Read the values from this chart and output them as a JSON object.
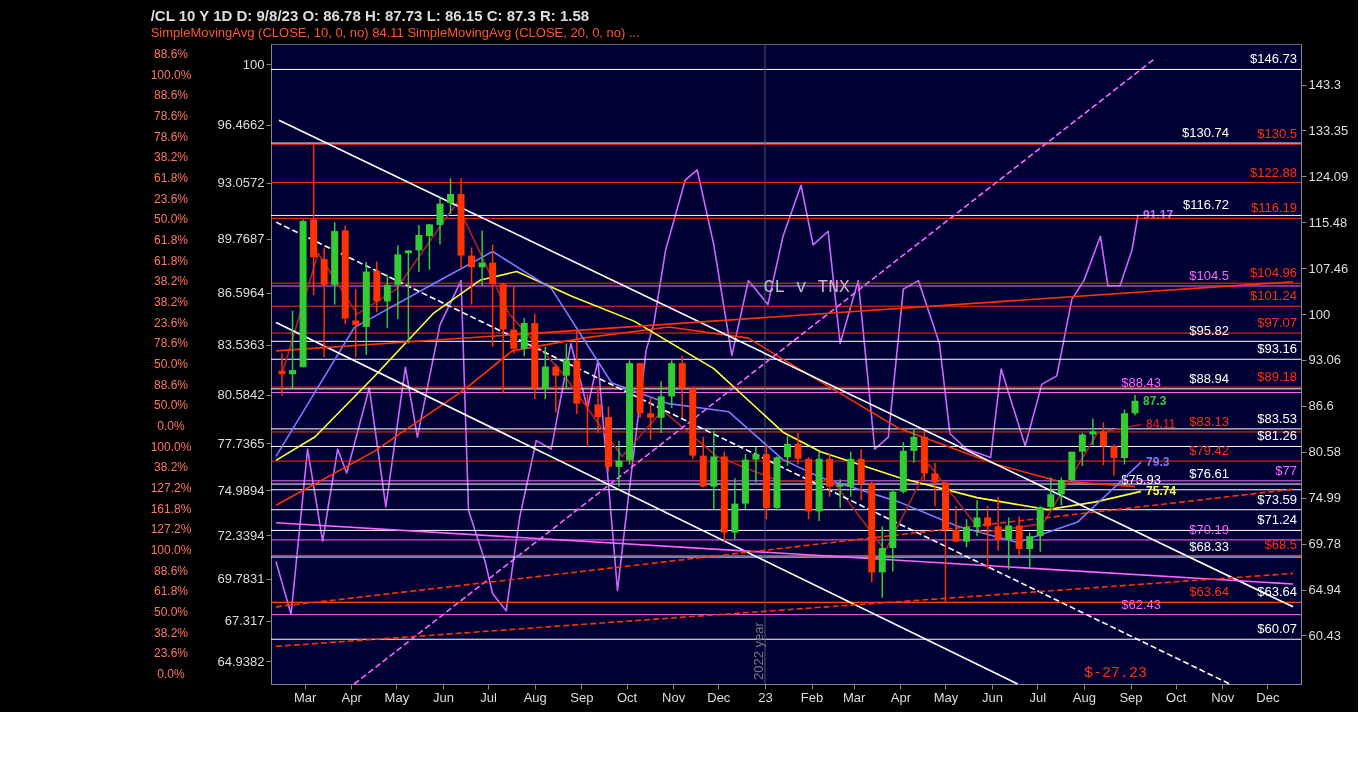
{
  "chart_data": {
    "type": "candlestick",
    "title": "/CL 10 Y 1D D: 9/8/23 O: 86.78 H: 87.73 L: 86.15 C: 87.3 R: 1.58",
    "subtitle": "SimpleMovingAvg (CLOSE, 10, 0, no) 84.11 SimpleMovingAvg (CLOSE, 20, 0, no) ...",
    "xlim": [
      "2022-02-10",
      "2023-12-20"
    ],
    "xticks": [
      {
        "value": "2022-03-01",
        "label": "Mar"
      },
      {
        "value": "2022-04-01",
        "label": "Apr"
      },
      {
        "value": "2022-05-01",
        "label": "May"
      },
      {
        "value": "2022-06-01",
        "label": "Jun"
      },
      {
        "value": "2022-07-01",
        "label": "Jul"
      },
      {
        "value": "2022-08-01",
        "label": "Aug"
      },
      {
        "value": "2022-09-01",
        "label": "Sep"
      },
      {
        "value": "2022-10-01",
        "label": "Oct"
      },
      {
        "value": "2022-11-01",
        "label": "Nov"
      },
      {
        "value": "2022-12-01",
        "label": "Dec"
      },
      {
        "value": "2023-01-01",
        "label": "23"
      },
      {
        "value": "2023-02-01",
        "label": "Feb"
      },
      {
        "value": "2023-03-01",
        "label": "Mar"
      },
      {
        "value": "2023-04-01",
        "label": "Apr"
      },
      {
        "value": "2023-05-01",
        "label": "May"
      },
      {
        "value": "2023-06-01",
        "label": "Jun"
      },
      {
        "value": "2023-07-01",
        "label": "Jul"
      },
      {
        "value": "2023-08-01",
        "label": "Aug"
      },
      {
        "value": "2023-09-01",
        "label": "Sep"
      },
      {
        "value": "2023-10-01",
        "label": "Oct"
      },
      {
        "value": "2023-11-01",
        "label": "Nov"
      },
      {
        "value": "2023-12-01",
        "label": "Dec"
      }
    ],
    "ylim": [
      63.6,
      101.2
    ],
    "yticks": [
      100,
      96.4662,
      93.0572,
      89.7687,
      86.5964,
      83.5363,
      80.5842,
      77.7365,
      74.9894,
      72.3394,
      69.7831,
      67.317,
      64.9382
    ],
    "y2lim": [
      56.0,
      152.7
    ],
    "y2ticks": [
      60.43,
      64.94,
      69.78,
      74.99,
      80.58,
      86.6,
      93.06,
      100,
      107.46,
      115.48,
      124.09,
      133.35,
      143.3
    ],
    "log": "y2",
    "series": [
      {
        "type": "line",
        "axis": "y",
        "color": "#cc66ff",
        "x": [
          "2022-02-10",
          "2022-02-20",
          "2022-03-03",
          "2022-03-13",
          "2022-03-23",
          "2022-03-29",
          "2022-04-13",
          "2022-04-24",
          "2022-05-07",
          "2022-05-15",
          "2022-05-30",
          "2022-06-13",
          "2022-06-18",
          "2022-06-29",
          "2022-07-04",
          "2022-07-13",
          "2022-07-22",
          "2022-08-02",
          "2022-08-12",
          "2022-08-25",
          "2022-09-05",
          "2022-09-12",
          "2022-09-25",
          "2022-09-30",
          "2022-10-14",
          "2022-10-19",
          "2022-10-27",
          "2022-11-09",
          "2022-11-17",
          "2022-11-28",
          "2022-12-10",
          "2022-12-21",
          "2023-01-03",
          "2023-01-13",
          "2023-01-25",
          "2023-02-02",
          "2023-02-12",
          "2023-02-20",
          "2023-03-04",
          "2023-03-15",
          "2023-03-24",
          "2023-04-03",
          "2023-04-13",
          "2023-04-27",
          "2023-05-04",
          "2023-05-15",
          "2023-05-31",
          "2023-06-07",
          "2023-06-23",
          "2023-07-04",
          "2023-07-14",
          "2023-07-24",
          "2023-08-01",
          "2023-08-12",
          "2023-08-17",
          "2023-08-25",
          "2023-09-02",
          "2023-09-06"
        ],
        "values": [
          70.8,
          67.7,
          77.4,
          72.0,
          77.4,
          76.0,
          81.0,
          74.0,
          82.2,
          78.1,
          84.7,
          87.3,
          73.8,
          70.8,
          68.9,
          67.9,
          73.4,
          77.9,
          77.4,
          83.6,
          79.8,
          82.6,
          69.1,
          72.9,
          83.2,
          84.7,
          89.1,
          93.2,
          93.8,
          89.4,
          82.9,
          87.3,
          85.9,
          89.9,
          92.9,
          89.4,
          90.2,
          83.6,
          87.3,
          77.4,
          78.1,
          86.8,
          87.3,
          83.6,
          78.3,
          77.4,
          76.9,
          82.1,
          77.6,
          81.2,
          81.7,
          86.2,
          87.3,
          89.9,
          87.0,
          87.0,
          89.1,
          91.17
        ],
        "value_labels": [
          null,
          null,
          null,
          null,
          null,
          null,
          null,
          null,
          null,
          null,
          null,
          null,
          null,
          null,
          null,
          null,
          null,
          null,
          null,
          null,
          null,
          null,
          null,
          null,
          null,
          null,
          null,
          null,
          null,
          null,
          null,
          null,
          null,
          null,
          null,
          null,
          null,
          null,
          null,
          null,
          null,
          null,
          null,
          null,
          null,
          null,
          null,
          null,
          null,
          null,
          null,
          null,
          null,
          null,
          null,
          null,
          null,
          "91.17"
        ]
      },
      {
        "type": "line",
        "axis": "y2",
        "color": "#ff3300",
        "x": [
          "2022-02-10",
          "2022-04-16",
          "2022-06-15",
          "2022-07-17",
          "2022-09-02",
          "2022-10-29",
          "2022-12-21",
          "2023-01-12",
          "2023-03-31",
          "2023-06-04",
          "2023-07-14",
          "2023-09-04"
        ],
        "values": [
          74.1,
          80.6,
          88.8,
          94.4,
          96.3,
          98.0,
          96.3,
          93.3,
          83.6,
          79.0,
          77.0,
          76.3
        ]
      },
      {
        "type": "line",
        "axis": "y2",
        "color": "#ffff33",
        "x": [
          "2022-02-10",
          "2022-03-08",
          "2022-04-16",
          "2022-05-26",
          "2022-06-26",
          "2022-07-20",
          "2022-08-26",
          "2022-10-06",
          "2022-11-28",
          "2023-01-13",
          "2023-02-07",
          "2023-03-31",
          "2023-05-22",
          "2023-07-08",
          "2023-08-09",
          "2023-09-08"
        ],
        "values": [
          79.5,
          82.5,
          90.6,
          100.2,
          105.5,
          106.9,
          102.8,
          98.9,
          91.8,
          83.1,
          80.6,
          77.4,
          75.0,
          73.6,
          74.5,
          75.74
        ],
        "value_labels": [
          null,
          null,
          null,
          null,
          null,
          null,
          null,
          null,
          null,
          null,
          null,
          null,
          null,
          null,
          null,
          "75.74"
        ]
      },
      {
        "type": "line",
        "axis": "y2",
        "color": "#7b7bff",
        "x": [
          "2022-02-10",
          "2022-04-03",
          "2022-05-26",
          "2022-07-04",
          "2022-08-12",
          "2022-09-21",
          "2022-10-29",
          "2022-12-08",
          "2023-01-13",
          "2023-02-07",
          "2023-03-31",
          "2023-05-09",
          "2023-06-18",
          "2023-07-28",
          "2023-09-08"
        ],
        "values": [
          80.0,
          97.9,
          104.9,
          110.3,
          104.1,
          89.8,
          86.9,
          85.8,
          79.6,
          77.4,
          74.5,
          71.7,
          69.9,
          72.2,
          79.3
        ],
        "value_labels": [
          null,
          null,
          null,
          null,
          null,
          null,
          null,
          null,
          null,
          null,
          null,
          null,
          null,
          null,
          "79.3"
        ]
      },
      {
        "type": "line",
        "axis": "y2",
        "color": "#b22222",
        "x": [
          "2022-02-14",
          "2022-03-10",
          "2022-04-05",
          "2022-05-01",
          "2022-06-10",
          "2022-07-15",
          "2022-08-20",
          "2022-09-28",
          "2022-10-25",
          "2022-11-30",
          "2023-01-10",
          "2023-02-15",
          "2023-03-22",
          "2023-04-20",
          "2023-05-25",
          "2023-07-05",
          "2023-08-10",
          "2023-09-08"
        ],
        "values": [
          91,
          110,
          100,
          104,
          119,
          100,
          91,
          80,
          86,
          80,
          77,
          77,
          69,
          79,
          71,
          72,
          83,
          84.11
        ],
        "value_labels": [
          null,
          null,
          null,
          null,
          null,
          null,
          null,
          null,
          null,
          null,
          null,
          null,
          null,
          null,
          null,
          null,
          null,
          "84.11"
        ]
      },
      {
        "type": "line",
        "axis": "y2",
        "color": "#ffffff",
        "x": [
          "2022-02-12",
          "2023-12-18"
        ],
        "values": [
          135.5,
          63.2
        ]
      },
      {
        "type": "line",
        "axis": "y2",
        "color": "#ffffff",
        "x": [
          "2022-02-10",
          "2023-06-18"
        ],
        "values": [
          98.7,
          56.0
        ]
      },
      {
        "type": "line",
        "axis": "y2",
        "color": "#ffffff",
        "line_style": "dashed",
        "x": [
          "2022-02-10",
          "2023-11-06"
        ],
        "values": [
          115.5,
          56.0
        ]
      },
      {
        "type": "line",
        "axis": "y2",
        "color": "#ff66ff",
        "line_style": "dashed",
        "x": [
          "2022-04-03",
          "2023-09-17"
        ],
        "values": [
          56.0,
          149.2
        ]
      },
      {
        "type": "line",
        "axis": "y2",
        "color": "#ff3300",
        "x": [
          "2022-02-10",
          "2023-12-18"
        ],
        "values": [
          94.4,
          105.2
        ]
      },
      {
        "type": "line",
        "axis": "y2",
        "color": "#ff66ff",
        "x": [
          "2022-02-10",
          "2023-12-18"
        ],
        "values": [
          72.1,
          65.5
        ]
      },
      {
        "type": "line",
        "axis": "y2",
        "color": "#ff3300",
        "line_style": "dashed",
        "x": [
          "2022-02-10",
          "2023-12-18"
        ],
        "values": [
          63.2,
          76.0
        ]
      },
      {
        "type": "line",
        "axis": "y2",
        "color": "#ff3300",
        "line_style": "dashed",
        "x": [
          "2022-02-10",
          "2023-12-18"
        ],
        "values": [
          59.4,
          66.6
        ]
      },
      {
        "type": "candlestick",
        "axis": "y2",
        "x": [
          "2022-02-14",
          "2022-02-21",
          "2022-02-28",
          "2022-03-07",
          "2022-03-14",
          "2022-03-21",
          "2022-03-28",
          "2022-04-04",
          "2022-04-11",
          "2022-04-18",
          "2022-04-25",
          "2022-05-02",
          "2022-05-09",
          "2022-05-16",
          "2022-05-23",
          "2022-05-30",
          "2022-06-06",
          "2022-06-13",
          "2022-06-20",
          "2022-06-27",
          "2022-07-04",
          "2022-07-11",
          "2022-07-18",
          "2022-07-25",
          "2022-08-01",
          "2022-08-08",
          "2022-08-15",
          "2022-08-22",
          "2022-08-29",
          "2022-09-05",
          "2022-09-12",
          "2022-09-19",
          "2022-09-26",
          "2022-10-03",
          "2022-10-10",
          "2022-10-17",
          "2022-10-24",
          "2022-10-31",
          "2022-11-07",
          "2022-11-14",
          "2022-11-21",
          "2022-11-28",
          "2022-12-05",
          "2022-12-12",
          "2022-12-19",
          "2022-12-26",
          "2023-01-02",
          "2023-01-09",
          "2023-01-16",
          "2023-01-23",
          "2023-01-30",
          "2023-02-06",
          "2023-02-13",
          "2023-02-20",
          "2023-02-27",
          "2023-03-06",
          "2023-03-13",
          "2023-03-20",
          "2023-03-27",
          "2023-04-03",
          "2023-04-10",
          "2023-04-17",
          "2023-04-24",
          "2023-05-01",
          "2023-05-08",
          "2023-05-15",
          "2023-05-22",
          "2023-05-29",
          "2023-06-05",
          "2023-06-12",
          "2023-06-19",
          "2023-06-26",
          "2023-07-03",
          "2023-07-10",
          "2023-07-17",
          "2023-07-24",
          "2023-07-31",
          "2023-08-07",
          "2023-08-14",
          "2023-08-21",
          "2023-08-28",
          "2023-09-04"
        ],
        "ohlc": [
          [
            91.5,
            94,
            88,
            91
          ],
          [
            91,
            100.5,
            89,
            91.6
          ],
          [
            92,
            116,
            92,
            115.7
          ],
          [
            116,
            130.5,
            103,
            109.3
          ],
          [
            109,
            111,
            93.5,
            104.7
          ],
          [
            104.7,
            115.5,
            101.5,
            113.9
          ],
          [
            114,
            114.9,
            98.4,
            99.3
          ],
          [
            99,
            104,
            93.5,
            98.3
          ],
          [
            98,
            108.5,
            93.8,
            106.9
          ],
          [
            107,
            108.6,
            100.3,
            102
          ],
          [
            102,
            106.4,
            97.8,
            104.7
          ],
          [
            104.7,
            111.4,
            99.2,
            109.8
          ],
          [
            110,
            110.5,
            95.5,
            110.5
          ],
          [
            110.5,
            115,
            106.8,
            113.2
          ],
          [
            113,
            115.2,
            107.2,
            115.1
          ],
          [
            115,
            120,
            111.5,
            118.9
          ],
          [
            119,
            123.7,
            117,
            120.7
          ],
          [
            120.7,
            123.7,
            107.4,
            109.6
          ],
          [
            109.6,
            111,
            101.5,
            107.6
          ],
          [
            107.6,
            114,
            104.5,
            108.4
          ],
          [
            108.4,
            111.5,
            95,
            104.8
          ],
          [
            104.8,
            105,
            88.3,
            97.6
          ],
          [
            97.6,
            104.5,
            94,
            94.7
          ],
          [
            94.7,
            99.4,
            93.6,
            98.6
          ],
          [
            98.6,
            100,
            87.5,
            89
          ],
          [
            89,
            95,
            87.5,
            92.1
          ],
          [
            92.1,
            92.5,
            85.7,
            90.8
          ],
          [
            90.8,
            95.5,
            88.9,
            93
          ],
          [
            93,
            97.6,
            85.5,
            86.9
          ],
          [
            86.9,
            88.2,
            81.2,
            86.8
          ],
          [
            86.8,
            89.3,
            83,
            85.1
          ],
          [
            85.1,
            86.5,
            78.1,
            78.7
          ],
          [
            78.7,
            82,
            76.3,
            79.5
          ],
          [
            79.5,
            93,
            79,
            92.6
          ],
          [
            92.6,
            92.6,
            85,
            85.6
          ],
          [
            85.6,
            87.8,
            82.1,
            85
          ],
          [
            85,
            90,
            83,
            87.9
          ],
          [
            87.9,
            93,
            86.3,
            92.6
          ],
          [
            92.6,
            93.7,
            85,
            89
          ],
          [
            89,
            89.2,
            79.7,
            80.1
          ],
          [
            80.1,
            82.5,
            76.2,
            76.3
          ],
          [
            76.3,
            83.3,
            73.6,
            80
          ],
          [
            80,
            80.6,
            70,
            71
          ],
          [
            71,
            77.3,
            70.3,
            74.3
          ],
          [
            74.3,
            80.3,
            73.7,
            79.6
          ],
          [
            79.6,
            81.2,
            76.8,
            80.3
          ],
          [
            80.3,
            81.5,
            72.5,
            73.8
          ],
          [
            73.8,
            80,
            73.5,
            79.9
          ],
          [
            79.9,
            82.6,
            78.8,
            81.6
          ],
          [
            81.6,
            83,
            79,
            79.7
          ],
          [
            79.7,
            79.9,
            72.5,
            73.4
          ],
          [
            73.4,
            80.6,
            72.3,
            79.7
          ],
          [
            79.7,
            80.4,
            75.1,
            76.3
          ],
          [
            76.3,
            77.2,
            73.8,
            76.5
          ],
          [
            76.3,
            80.6,
            75.1,
            79.7
          ],
          [
            79.7,
            80.9,
            74.7,
            76.7
          ],
          [
            76.7,
            76.9,
            65.7,
            66.7
          ],
          [
            66.7,
            71.7,
            64.1,
            69.3
          ],
          [
            69.3,
            76,
            66.8,
            75.7
          ],
          [
            75.7,
            81.8,
            75.5,
            80.7
          ],
          [
            80.7,
            83.5,
            79.2,
            82.5
          ],
          [
            82.5,
            83.3,
            77,
            77.9
          ],
          [
            77.9,
            79.2,
            74,
            76.8
          ],
          [
            76.8,
            76.9,
            63.6,
            71.3
          ],
          [
            71.3,
            74,
            70,
            70
          ],
          [
            70,
            72.5,
            69.4,
            71.6
          ],
          [
            71.6,
            74.7,
            70.6,
            72.7
          ],
          [
            72.7,
            74,
            67,
            71.7
          ],
          [
            71.7,
            75.1,
            69,
            70.2
          ],
          [
            70.2,
            72.7,
            67,
            71.8
          ],
          [
            71.8,
            72.8,
            68.4,
            69.2
          ],
          [
            69.2,
            71,
            67.2,
            70.6
          ],
          [
            70.6,
            74,
            68.9,
            73.9
          ],
          [
            73.9,
            77.4,
            73.5,
            75.4
          ],
          [
            75.4,
            77.4,
            74.1,
            77.1
          ],
          [
            77.1,
            80.6,
            76.9,
            80.6
          ],
          [
            80.6,
            83,
            78.8,
            82.8
          ],
          [
            82.8,
            84.9,
            81.4,
            83.2
          ],
          [
            83.2,
            84.4,
            78.9,
            81.3
          ],
          [
            81.3,
            81.5,
            77.6,
            79.8
          ],
          [
            79.8,
            86.1,
            79,
            85.6
          ],
          [
            85.6,
            88.1,
            85.3,
            87.3
          ]
        ],
        "value_labels": [
          null,
          null,
          null,
          null,
          null,
          null,
          null,
          null,
          null,
          null,
          null,
          null,
          null,
          null,
          null,
          null,
          null,
          null,
          null,
          null,
          null,
          null,
          null,
          null,
          null,
          null,
          null,
          null,
          null,
          null,
          null,
          null,
          null,
          null,
          null,
          null,
          null,
          null,
          null,
          null,
          null,
          null,
          null,
          null,
          null,
          null,
          null,
          null,
          null,
          null,
          null,
          null,
          null,
          null,
          null,
          null,
          null,
          null,
          null,
          null,
          null,
          null,
          null,
          null,
          null,
          null,
          null,
          null,
          null,
          null,
          null,
          null,
          null,
          null,
          null,
          null,
          null,
          null,
          null,
          null,
          null,
          "87.3"
        ],
        "colors": [
          "#ff3300",
          "#33cc33",
          "#33cc33",
          "#ff3300",
          "#ff3300",
          "#33cc33",
          "#ff3300",
          "#ff3300",
          "#33cc33",
          "#ff3300",
          "#33cc33",
          "#33cc33",
          "#33cc33",
          "#33cc33",
          "#33cc33",
          "#33cc33",
          "#33cc33",
          "#ff3300",
          "#ff3300",
          "#33cc33",
          "#ff3300",
          "#ff3300",
          "#ff3300",
          "#33cc33",
          "#ff3300",
          "#33cc33",
          "#ff3300",
          "#33cc33",
          "#ff3300",
          "#ff3300",
          "#ff3300",
          "#ff3300",
          "#33cc33",
          "#33cc33",
          "#ff3300",
          "#ff3300",
          "#33cc33",
          "#33cc33",
          "#ff3300",
          "#ff3300",
          "#ff3300",
          "#33cc33",
          "#ff3300",
          "#33cc33",
          "#33cc33",
          "#33cc33",
          "#ff3300",
          "#33cc33",
          "#33cc33",
          "#ff3300",
          "#ff3300",
          "#33cc33",
          "#ff3300",
          "#33cc33",
          "#33cc33",
          "#ff3300",
          "#ff3300",
          "#33cc33",
          "#33cc33",
          "#33cc33",
          "#33cc33",
          "#ff3300",
          "#ff3300",
          "#ff3300",
          "#ff3300",
          "#33cc33",
          "#33cc33",
          "#ff3300",
          "#ff3300",
          "#33cc33",
          "#ff3300",
          "#33cc33",
          "#33cc33",
          "#33cc33",
          "#33cc33",
          "#33cc33",
          "#33cc33",
          "#33cc33",
          "#ff3300",
          "#ff3300",
          "#33cc33",
          "#33cc33"
        ]
      }
    ],
    "ref_lines": [
      {
        "axis": "y2",
        "value": 146.73,
        "label": "$146.73",
        "color": "#ffffff"
      },
      {
        "axis": "y2",
        "value": 130.5,
        "label": "$130.5",
        "color": "#ff3300"
      },
      {
        "axis": "y2",
        "value": 130.74,
        "label": "$130.74",
        "color": "#ffffff"
      },
      {
        "axis": "y2",
        "value": 122.88,
        "label": "$122.88",
        "color": "#ff3300"
      },
      {
        "axis": "y2",
        "value": 116.19,
        "label": "$116.19",
        "color": "#ff3300"
      },
      {
        "axis": "y2",
        "value": 116.72,
        "label": "$116.72",
        "color": "#ffffff"
      },
      {
        "axis": "y2",
        "value": 104.96,
        "label": "$104.96",
        "color": "#ff3300"
      },
      {
        "axis": "y2",
        "value": 104.5,
        "label": "$104.5",
        "color": "#ff66ff"
      },
      {
        "axis": "y2",
        "value": 101.24,
        "label": "$101.24",
        "color": "#ff3300"
      },
      {
        "axis": "y2",
        "value": 97.07,
        "label": "$97.07",
        "color": "#ff3300"
      },
      {
        "axis": "y2",
        "value": 95.82,
        "label": "$95.82",
        "color": "#ffffff"
      },
      {
        "axis": "y2",
        "value": 93.16,
        "label": "$93.16",
        "color": "#ffffff"
      },
      {
        "axis": "y2",
        "value": 89.18,
        "label": "$89.18",
        "color": "#ff3300"
      },
      {
        "axis": "y2",
        "value": 88.94,
        "label": "$88.94",
        "color": "#ffffff"
      },
      {
        "axis": "y2",
        "value": 88.43,
        "label": "$88.43",
        "color": "#ff66ff"
      },
      {
        "axis": "y2",
        "value": 83.53,
        "label": "$83.53",
        "color": "#ffffff"
      },
      {
        "axis": "y2",
        "value": 83.13,
        "label": "$83.13",
        "color": "#ff3300"
      },
      {
        "axis": "y2",
        "value": 81.26,
        "label": "$81.26",
        "color": "#ffffff"
      },
      {
        "axis": "y2",
        "value": 79.42,
        "label": "$79.42",
        "color": "#ff3300"
      },
      {
        "axis": "y2",
        "value": 77,
        "label": "$77",
        "color": "#ff66ff"
      },
      {
        "axis": "y2",
        "value": 76.61,
        "label": "$76.61",
        "color": "#ffffff"
      },
      {
        "axis": "y2",
        "value": 75.93,
        "label": "$75.93",
        "color": "#ffffff"
      },
      {
        "axis": "y2",
        "value": 73.59,
        "label": "$73.59",
        "color": "#ffffff"
      },
      {
        "axis": "y2",
        "value": 71.24,
        "label": "$71.24",
        "color": "#ffffff"
      },
      {
        "axis": "y2",
        "value": 70.19,
        "label": "$70.19",
        "color": "#ff66ff"
      },
      {
        "axis": "y2",
        "value": 68.5,
        "label": "$68.5",
        "color": "#ff3300"
      },
      {
        "axis": "y2",
        "value": 68.33,
        "label": "$68.33",
        "color": "#ffffff"
      },
      {
        "axis": "y2",
        "value": 63.64,
        "label": "$63.64",
        "color": "#ffffff"
      },
      {
        "axis": "y2",
        "value": 63.64,
        "label": "$63.64",
        "color": "#ff3300"
      },
      {
        "axis": "y2",
        "value": 62.43,
        "label": "$62.43",
        "color": "#ff66ff"
      },
      {
        "axis": "y2",
        "value": 60.07,
        "label": "$60.07",
        "color": "#ffffff"
      },
      {
        "axis": "x",
        "value": "2023-01-01",
        "label": "2022 year",
        "color": "#555566"
      }
    ],
    "annotations": [
      "CL v TNX",
      "$-27.23",
      "88.6%",
      "100.0%",
      "88.6%",
      "78.6%",
      "78.6%",
      "38.2%",
      "61.8%",
      "23.6%",
      "50.0%",
      "61.8%",
      "61.8%",
      "38.2%",
      "38.2%",
      "23.6%",
      "78.6%",
      "50.0%",
      "88.6%",
      "50.0%",
      "0.0%",
      "100.0%",
      "38.2%",
      "127.2%",
      "161.8%",
      "127.2%",
      "100.0%",
      "88.6%",
      "61.8%",
      "50.0%",
      "38.2%",
      "23.6%",
      "0.0%"
    ]
  }
}
